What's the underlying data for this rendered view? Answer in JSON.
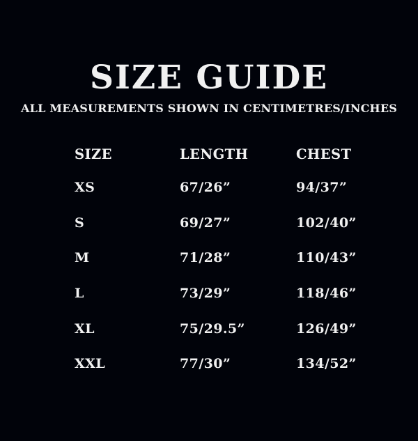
{
  "page": {
    "background_color": "#01030a",
    "text_color": "#f1f1f1",
    "title": "SIZE GUIDE",
    "subtitle": "ALL MEASUREMENTS SHOWN IN CENTIMETRES/INCHES"
  },
  "size_table": {
    "columns": {
      "size": "SIZE",
      "length": "LENGTH",
      "chest": "CHEST"
    },
    "rows": [
      {
        "size": "XS",
        "length": "67/26”",
        "chest": "94/37”"
      },
      {
        "size": "S",
        "length": "69/27”",
        "chest": "102/40”"
      },
      {
        "size": "M",
        "length": "71/28”",
        "chest": "110/43”"
      },
      {
        "size": "L",
        "length": "73/29”",
        "chest": "118/46”"
      },
      {
        "size": "XL",
        "length": "75/29.5”",
        "chest": "126/49”"
      },
      {
        "size": "XXL",
        "length": "77/30”",
        "chest": "134/52”"
      }
    ]
  }
}
